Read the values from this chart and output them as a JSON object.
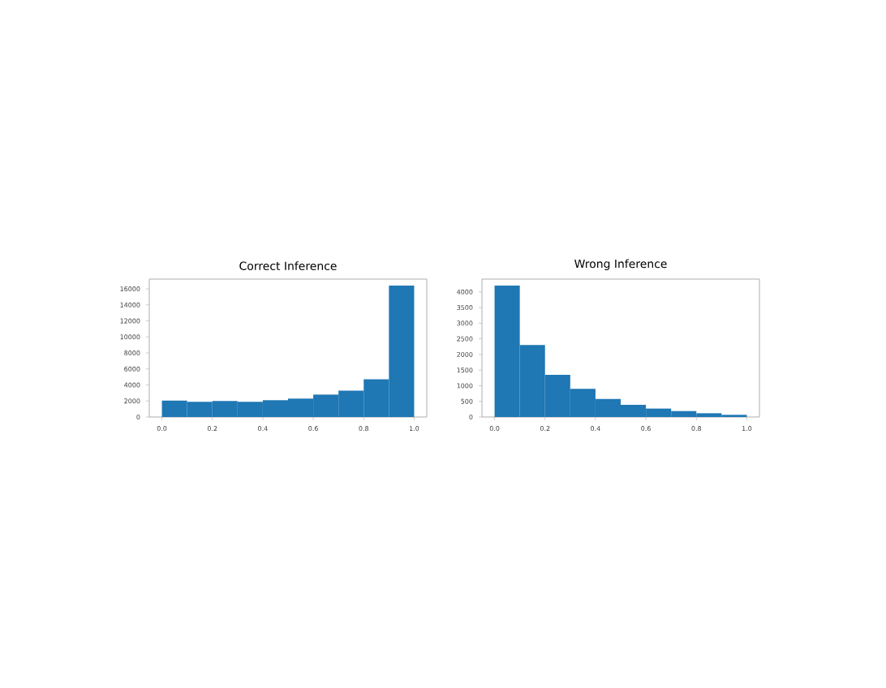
{
  "chart_data": [
    {
      "type": "histogram",
      "title": "Correct Inference",
      "color": "#1f77b4",
      "bins": [
        0.0,
        0.1,
        0.2,
        0.3,
        0.4,
        0.5,
        0.6,
        0.7,
        0.8,
        0.9,
        1.0
      ],
      "values": [
        2050,
        1900,
        2000,
        1900,
        2100,
        2300,
        2800,
        3300,
        4700,
        16400
      ],
      "xlim": [
        -0.05,
        1.05
      ],
      "ylim": [
        0,
        17220
      ],
      "xticks": [
        {
          "value": 0,
          "label": "0.0"
        },
        {
          "value": 0.2,
          "label": "0.2"
        },
        {
          "value": 0.4,
          "label": "0.4"
        },
        {
          "value": 0.6,
          "label": "0.6"
        },
        {
          "value": 0.8,
          "label": "0.8"
        },
        {
          "value": 1,
          "label": "1.0"
        }
      ],
      "yticks": [
        0,
        2000,
        4000,
        6000,
        8000,
        10000,
        12000,
        14000,
        16000
      ]
    },
    {
      "type": "histogram",
      "title": "Wrong Inference",
      "color": "#1f77b4",
      "bins": [
        0.0,
        0.1,
        0.2,
        0.3,
        0.4,
        0.5,
        0.6,
        0.7,
        0.8,
        0.9,
        1.0
      ],
      "values": [
        4200,
        2300,
        1350,
        900,
        580,
        390,
        270,
        190,
        120,
        70
      ],
      "xlim": [
        -0.05,
        1.05
      ],
      "ylim": [
        0,
        4410
      ],
      "xticks": [
        {
          "value": 0,
          "label": "0.0"
        },
        {
          "value": 0.2,
          "label": "0.2"
        },
        {
          "value": 0.4,
          "label": "0.4"
        },
        {
          "value": 0.6,
          "label": "0.6"
        },
        {
          "value": 0.8,
          "label": "0.8"
        },
        {
          "value": 1,
          "label": "1.0"
        }
      ],
      "yticks": [
        0,
        500,
        1000,
        1500,
        2000,
        2500,
        3000,
        3500,
        4000
      ]
    }
  ]
}
